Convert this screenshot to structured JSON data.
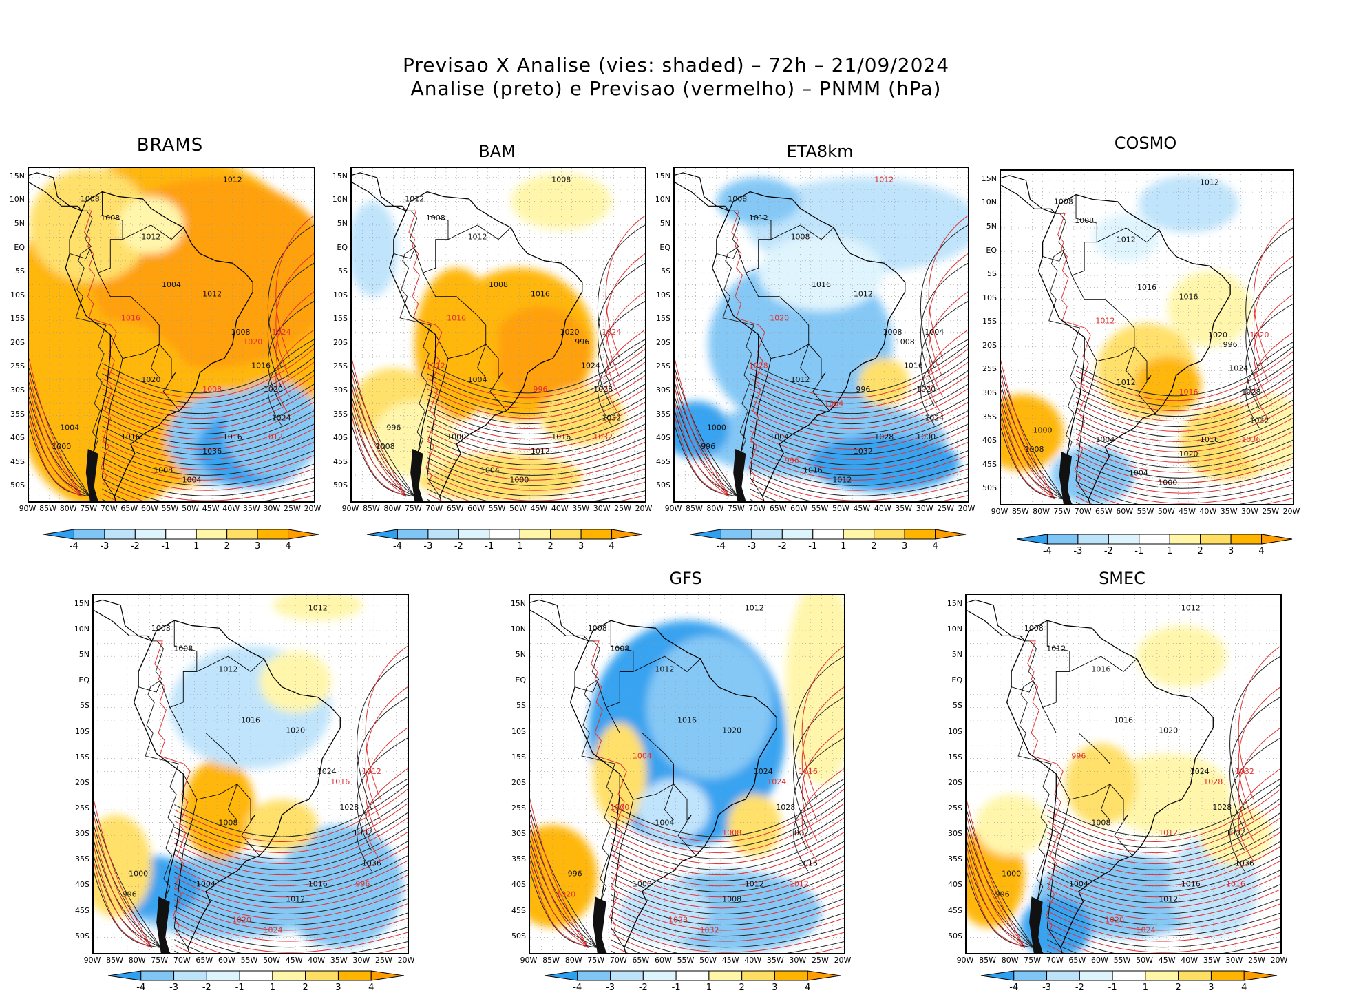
{
  "title": {
    "line1": "Previsao X Analise (vies: shaded) – 72h – 21/09/2024",
    "line2": "Analise (preto) e Previsao (vermelho) – PNMM (hPa)"
  },
  "lat_labels": [
    "15N",
    "10N",
    "5N",
    "EQ",
    "5S",
    "10S",
    "15S",
    "20S",
    "25S",
    "30S",
    "35S",
    "40S",
    "45S",
    "50S"
  ],
  "lon_labels": [
    "90W",
    "85W",
    "80W",
    "75W",
    "70W",
    "65W",
    "60W",
    "55W",
    "50W",
    "45W",
    "40W",
    "35W",
    "30W",
    "25W",
    "20W"
  ],
  "colorbar": {
    "labels": [
      "-4",
      "-3",
      "-2",
      "-1",
      "1",
      "2",
      "3",
      "4"
    ],
    "colors": [
      "#2f9ff0",
      "#7fc6f6",
      "#bde3fb",
      "#def4fd",
      "#ffffff",
      "#fff6a8",
      "#ffdf63",
      "#ffb400",
      "#ff9c00"
    ]
  },
  "panels": [
    {
      "name": "BRAMS",
      "bias": "warm-strong",
      "contours": [
        {
          "t": "1012",
          "c": "k"
        },
        {
          "t": "1008",
          "c": "k"
        },
        {
          "t": "1008",
          "c": "k"
        },
        {
          "t": "1012",
          "c": "k"
        },
        {
          "t": "1004",
          "c": "k"
        },
        {
          "t": "1012",
          "c": "k"
        },
        {
          "t": "1008",
          "c": "k"
        },
        {
          "t": "1016",
          "c": "k"
        },
        {
          "t": "1020",
          "c": "k"
        },
        {
          "t": "1024",
          "c": "k"
        },
        {
          "t": "1016",
          "c": "k"
        },
        {
          "t": "1036",
          "c": "k"
        },
        {
          "t": "1020",
          "c": "k"
        },
        {
          "t": "1016",
          "c": "k"
        },
        {
          "t": "1004",
          "c": "k"
        },
        {
          "t": "1000",
          "c": "k"
        },
        {
          "t": "1008",
          "c": "k"
        },
        {
          "t": "1004",
          "c": "k"
        },
        {
          "t": "1020",
          "c": "r"
        },
        {
          "t": "1024",
          "c": "r"
        },
        {
          "t": "1012",
          "c": "r"
        },
        {
          "t": "1008",
          "c": "r"
        },
        {
          "t": "1016",
          "c": "r"
        }
      ]
    },
    {
      "name": "BAM",
      "bias": "warm-mixed",
      "contours": [
        {
          "t": "1008",
          "c": "k"
        },
        {
          "t": "1012",
          "c": "k"
        },
        {
          "t": "1008",
          "c": "k"
        },
        {
          "t": "1012",
          "c": "k"
        },
        {
          "t": "1008",
          "c": "k"
        },
        {
          "t": "1016",
          "c": "k"
        },
        {
          "t": "1020",
          "c": "k"
        },
        {
          "t": "1024",
          "c": "k"
        },
        {
          "t": "1028",
          "c": "k"
        },
        {
          "t": "1032",
          "c": "k"
        },
        {
          "t": "1016",
          "c": "k"
        },
        {
          "t": "1012",
          "c": "k"
        },
        {
          "t": "1004",
          "c": "k"
        },
        {
          "t": "1000",
          "c": "k"
        },
        {
          "t": "996",
          "c": "k"
        },
        {
          "t": "1008",
          "c": "k"
        },
        {
          "t": "1004",
          "c": "k"
        },
        {
          "t": "1000",
          "c": "k"
        },
        {
          "t": "996",
          "c": "k"
        },
        {
          "t": "1024",
          "c": "r"
        },
        {
          "t": "1032",
          "c": "r"
        },
        {
          "t": "996",
          "c": "r"
        },
        {
          "t": "1016",
          "c": "r"
        },
        {
          "t": "1012",
          "c": "r"
        }
      ]
    },
    {
      "name": "ETA8km",
      "bias": "cold",
      "contours": [
        {
          "t": "1012",
          "c": "r"
        },
        {
          "t": "1008",
          "c": "k"
        },
        {
          "t": "1012",
          "c": "k"
        },
        {
          "t": "1008",
          "c": "k"
        },
        {
          "t": "1016",
          "c": "k"
        },
        {
          "t": "1012",
          "c": "k"
        },
        {
          "t": "1008",
          "c": "k"
        },
        {
          "t": "1016",
          "c": "k"
        },
        {
          "t": "1020",
          "c": "k"
        },
        {
          "t": "1024",
          "c": "k"
        },
        {
          "t": "1028",
          "c": "k"
        },
        {
          "t": "1032",
          "c": "k"
        },
        {
          "t": "1012",
          "c": "k"
        },
        {
          "t": "1004",
          "c": "k"
        },
        {
          "t": "1000",
          "c": "k"
        },
        {
          "t": "996",
          "c": "k"
        },
        {
          "t": "1016",
          "c": "k"
        },
        {
          "t": "1012",
          "c": "k"
        },
        {
          "t": "1008",
          "c": "k"
        },
        {
          "t": "1004",
          "c": "k"
        },
        {
          "t": "1000",
          "c": "k"
        },
        {
          "t": "996",
          "c": "k"
        },
        {
          "t": "1020",
          "c": "r"
        },
        {
          "t": "1028",
          "c": "r"
        },
        {
          "t": "996",
          "c": "r"
        },
        {
          "t": "1004",
          "c": "r"
        }
      ]
    },
    {
      "name": "COSMO",
      "bias": "mixed",
      "contours": [
        {
          "t": "1012",
          "c": "k"
        },
        {
          "t": "1008",
          "c": "k"
        },
        {
          "t": "1008",
          "c": "k"
        },
        {
          "t": "1012",
          "c": "k"
        },
        {
          "t": "1016",
          "c": "k"
        },
        {
          "t": "1016",
          "c": "k"
        },
        {
          "t": "1020",
          "c": "k"
        },
        {
          "t": "1024",
          "c": "k"
        },
        {
          "t": "1028",
          "c": "k"
        },
        {
          "t": "1032",
          "c": "k"
        },
        {
          "t": "1016",
          "c": "k"
        },
        {
          "t": "1020",
          "c": "k"
        },
        {
          "t": "1012",
          "c": "k"
        },
        {
          "t": "1004",
          "c": "k"
        },
        {
          "t": "1000",
          "c": "k"
        },
        {
          "t": "1008",
          "c": "k"
        },
        {
          "t": "1004",
          "c": "k"
        },
        {
          "t": "1000",
          "c": "k"
        },
        {
          "t": "996",
          "c": "k"
        },
        {
          "t": "1020",
          "c": "r"
        },
        {
          "t": "1036",
          "c": "r"
        },
        {
          "t": "1016",
          "c": "r"
        },
        {
          "t": "1012",
          "c": "r"
        }
      ]
    },
    {
      "name": "",
      "bias": "mixed-2",
      "contours": [
        {
          "t": "1012",
          "c": "k"
        },
        {
          "t": "1008",
          "c": "k"
        },
        {
          "t": "1008",
          "c": "k"
        },
        {
          "t": "1012",
          "c": "k"
        },
        {
          "t": "1016",
          "c": "k"
        },
        {
          "t": "1020",
          "c": "k"
        },
        {
          "t": "1024",
          "c": "k"
        },
        {
          "t": "1028",
          "c": "k"
        },
        {
          "t": "1032",
          "c": "k"
        },
        {
          "t": "1036",
          "c": "k"
        },
        {
          "t": "1016",
          "c": "k"
        },
        {
          "t": "1012",
          "c": "k"
        },
        {
          "t": "1008",
          "c": "k"
        },
        {
          "t": "1004",
          "c": "k"
        },
        {
          "t": "1000",
          "c": "k"
        },
        {
          "t": "996",
          "c": "k"
        },
        {
          "t": "1020",
          "c": "r"
        },
        {
          "t": "1024",
          "c": "r"
        },
        {
          "t": "1016",
          "c": "r"
        },
        {
          "t": "1012",
          "c": "r"
        },
        {
          "t": "996",
          "c": "r"
        }
      ]
    },
    {
      "name": "GFS",
      "bias": "cold-north",
      "contours": [
        {
          "t": "1012",
          "c": "k"
        },
        {
          "t": "1008",
          "c": "k"
        },
        {
          "t": "1008",
          "c": "k"
        },
        {
          "t": "1012",
          "c": "k"
        },
        {
          "t": "1016",
          "c": "k"
        },
        {
          "t": "1020",
          "c": "k"
        },
        {
          "t": "1024",
          "c": "k"
        },
        {
          "t": "1028",
          "c": "k"
        },
        {
          "t": "1032",
          "c": "k"
        },
        {
          "t": "1016",
          "c": "k"
        },
        {
          "t": "1012",
          "c": "k"
        },
        {
          "t": "1008",
          "c": "k"
        },
        {
          "t": "1004",
          "c": "k"
        },
        {
          "t": "1000",
          "c": "k"
        },
        {
          "t": "996",
          "c": "k"
        },
        {
          "t": "1020",
          "c": "r"
        },
        {
          "t": "1028",
          "c": "r"
        },
        {
          "t": "1032",
          "c": "r"
        },
        {
          "t": "1024",
          "c": "r"
        },
        {
          "t": "1016",
          "c": "r"
        },
        {
          "t": "1012",
          "c": "r"
        },
        {
          "t": "1008",
          "c": "r"
        },
        {
          "t": "1004",
          "c": "r"
        },
        {
          "t": "1000",
          "c": "r"
        }
      ]
    },
    {
      "name": "SMEC",
      "bias": "mixed-3",
      "contours": [
        {
          "t": "1012",
          "c": "k"
        },
        {
          "t": "1008",
          "c": "k"
        },
        {
          "t": "1012",
          "c": "k"
        },
        {
          "t": "1016",
          "c": "k"
        },
        {
          "t": "1016",
          "c": "k"
        },
        {
          "t": "1020",
          "c": "k"
        },
        {
          "t": "1024",
          "c": "k"
        },
        {
          "t": "1028",
          "c": "k"
        },
        {
          "t": "1032",
          "c": "k"
        },
        {
          "t": "1036",
          "c": "k"
        },
        {
          "t": "1016",
          "c": "k"
        },
        {
          "t": "1012",
          "c": "k"
        },
        {
          "t": "1008",
          "c": "k"
        },
        {
          "t": "1004",
          "c": "k"
        },
        {
          "t": "1000",
          "c": "k"
        },
        {
          "t": "996",
          "c": "k"
        },
        {
          "t": "1020",
          "c": "r"
        },
        {
          "t": "1024",
          "c": "r"
        },
        {
          "t": "1028",
          "c": "r"
        },
        {
          "t": "1032",
          "c": "r"
        },
        {
          "t": "1016",
          "c": "r"
        },
        {
          "t": "1012",
          "c": "r"
        },
        {
          "t": "996",
          "c": "r"
        }
      ]
    }
  ]
}
